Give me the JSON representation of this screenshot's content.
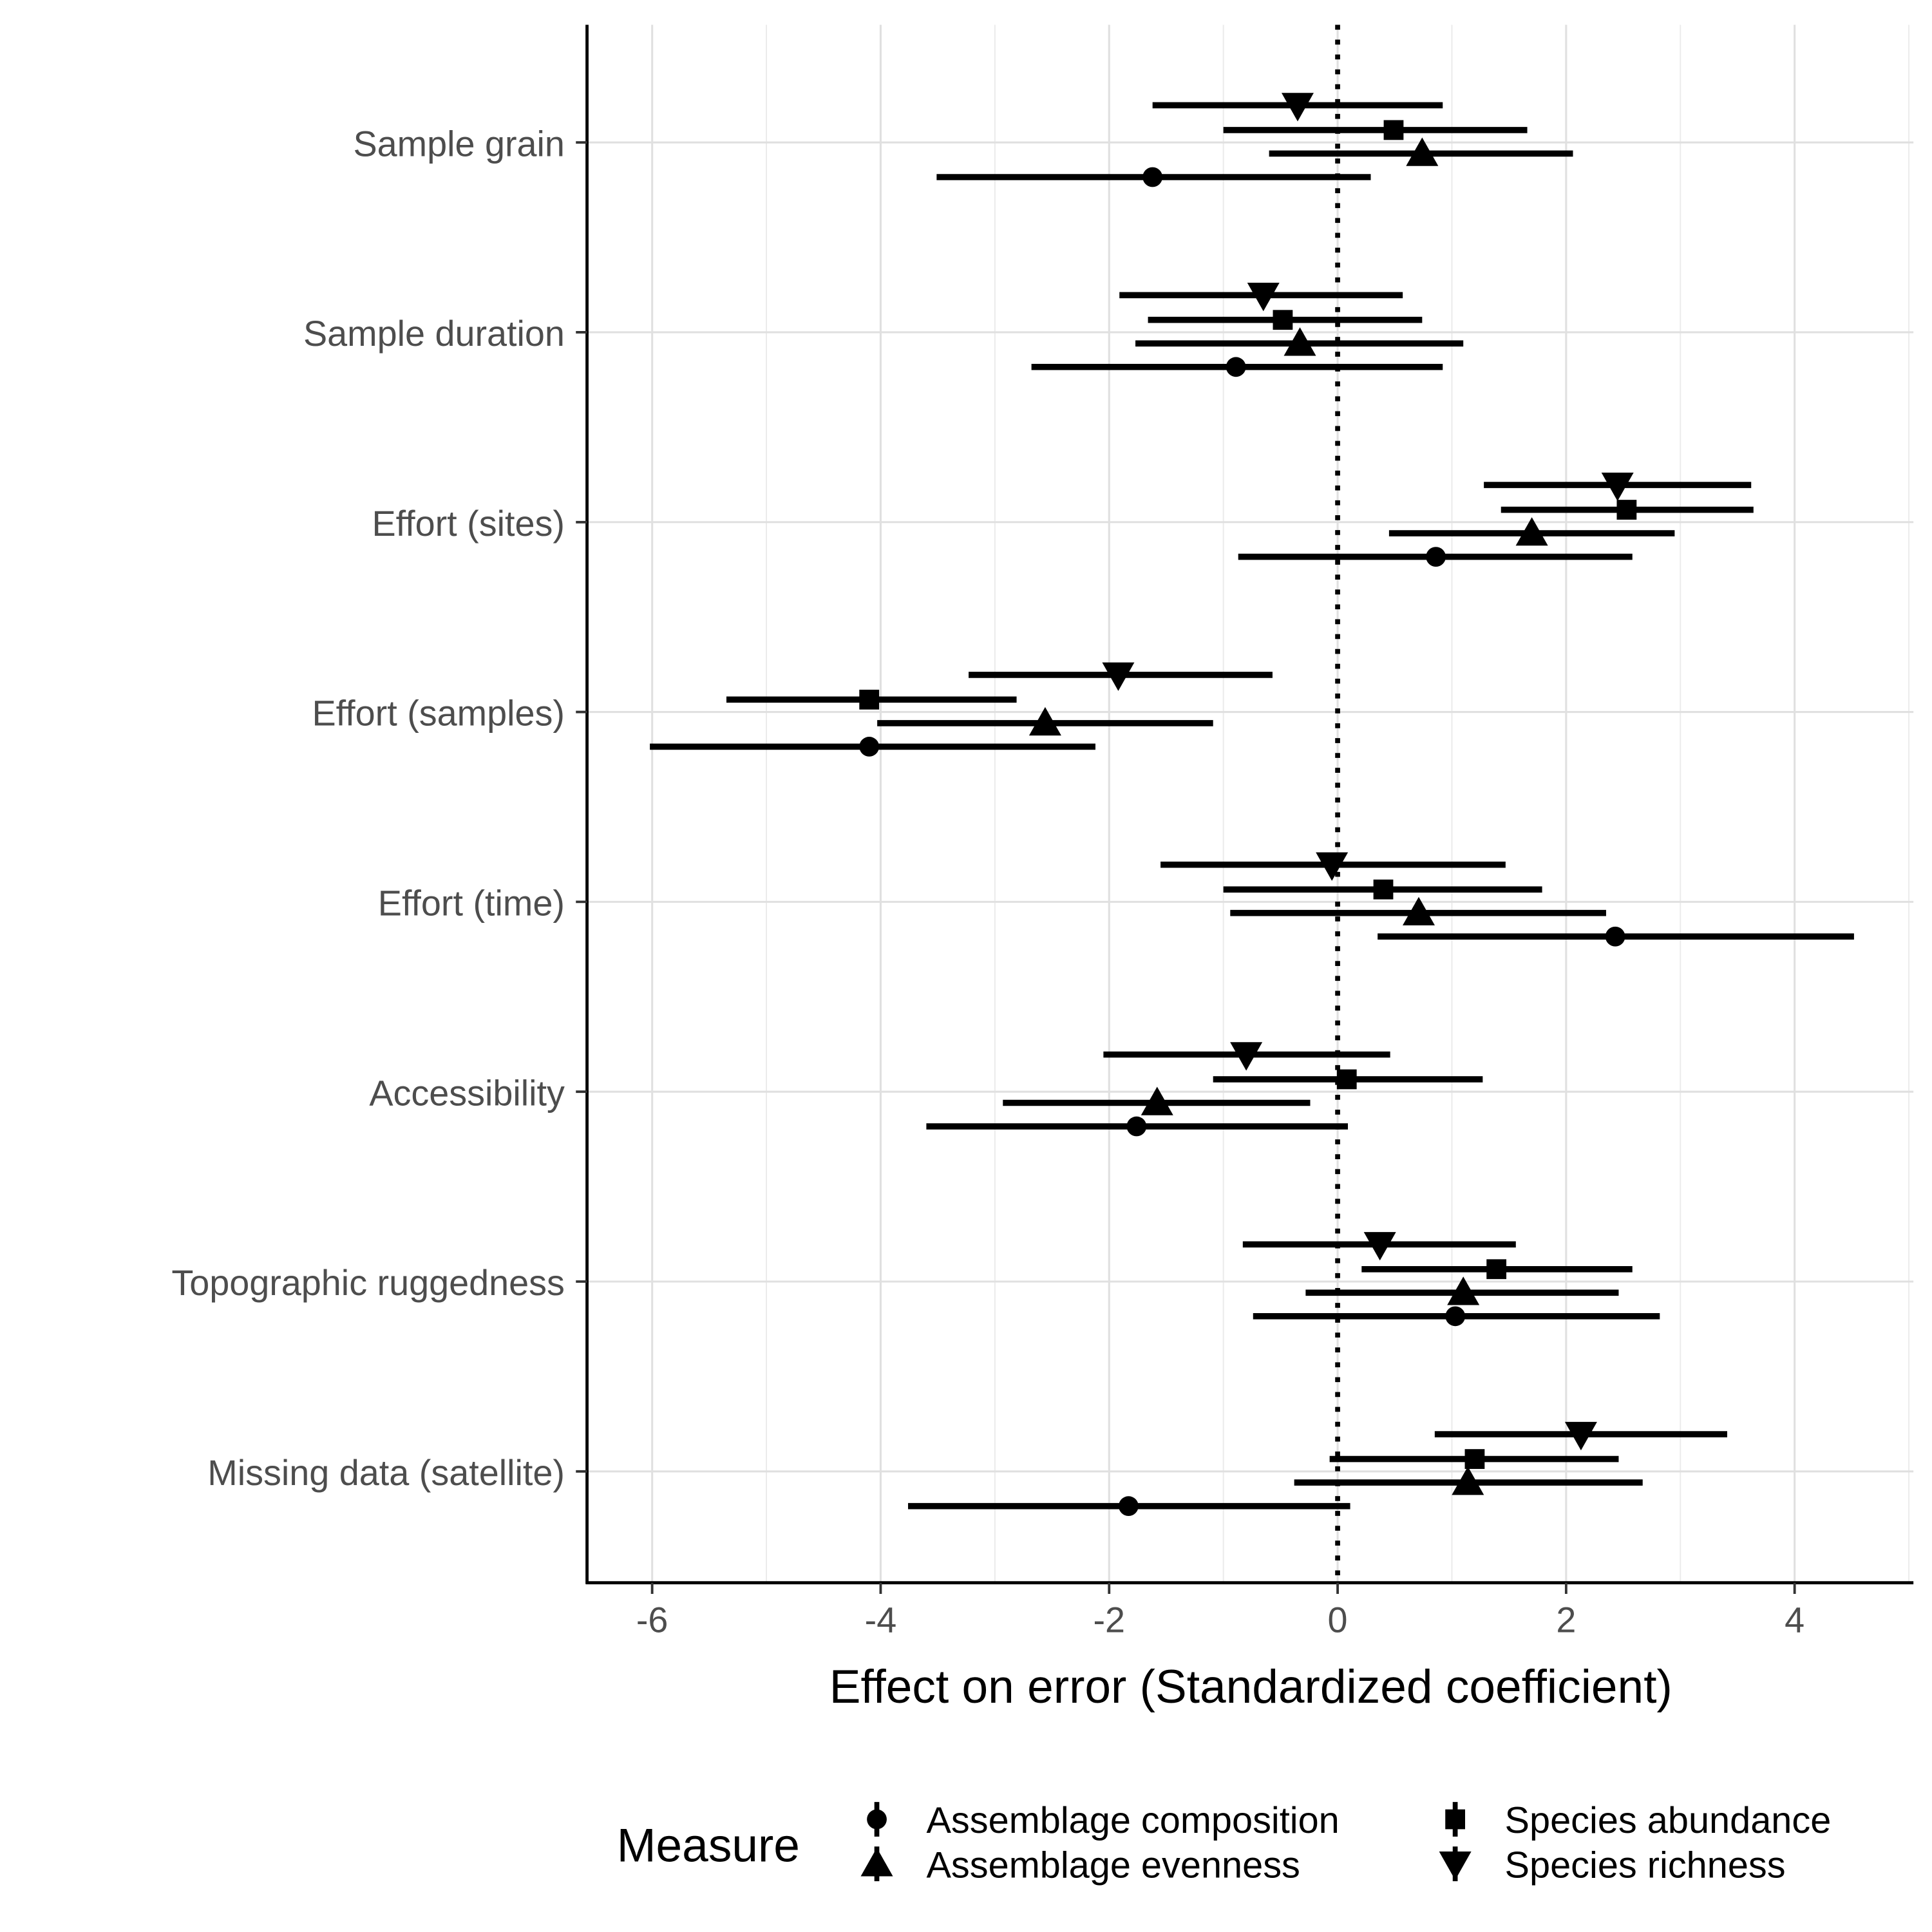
{
  "chart_data": {
    "type": "scatter",
    "subtype": "coefficient plot with horizontal confidence intervals",
    "xlabel": "Effect on error (Standardized coefficient)",
    "ylabel": "",
    "xlim": [
      -6.57,
      5.04
    ],
    "xticks": [
      -6,
      -4,
      -2,
      0,
      2,
      4
    ],
    "xtick_labels": [
      "-6",
      "-4",
      "-2",
      "0",
      "2",
      "4"
    ],
    "reference_line": {
      "x": 0,
      "style": "dotted"
    },
    "grid": true,
    "categories": [
      "Sample grain",
      "Sample duration",
      "Effort (sites)",
      "Effort (samples)",
      "Effort (time)",
      "Accessibility",
      "Topographic ruggedness",
      "Missing data (satellite)"
    ],
    "legend": {
      "title": "Measure",
      "position": "bottom"
    },
    "color": "#000000",
    "series": [
      {
        "name": "Species richness",
        "marker": "triangle-down",
        "values": [
          -0.35,
          -0.65,
          2.45,
          -1.92,
          -0.05,
          -0.8,
          0.37,
          2.13
        ],
        "lower": [
          -1.62,
          -1.91,
          1.28,
          -3.23,
          -1.55,
          -2.05,
          -0.83,
          0.85
        ],
        "upper": [
          0.92,
          0.57,
          3.62,
          -0.57,
          1.47,
          0.46,
          1.56,
          3.41
        ]
      },
      {
        "name": "Species abundance",
        "marker": "square",
        "values": [
          0.49,
          -0.48,
          2.53,
          -4.1,
          0.4,
          0.08,
          1.39,
          1.2
        ],
        "lower": [
          -1.0,
          -1.66,
          1.43,
          -5.35,
          -1.0,
          -1.09,
          0.21,
          -0.07
        ],
        "upper": [
          1.66,
          0.74,
          3.64,
          -2.81,
          1.79,
          1.27,
          2.58,
          2.46
        ]
      },
      {
        "name": "Assemblage evenness",
        "marker": "triangle-up",
        "values": [
          0.74,
          -0.33,
          1.7,
          -2.56,
          0.71,
          -1.58,
          1.1,
          1.14
        ],
        "lower": [
          -0.6,
          -1.77,
          0.45,
          -4.03,
          -0.94,
          -2.93,
          -0.28,
          -0.38
        ],
        "upper": [
          2.06,
          1.1,
          2.95,
          -1.09,
          2.35,
          -0.24,
          2.46,
          2.67
        ]
      },
      {
        "name": "Assemblage composition",
        "marker": "circle",
        "values": [
          -1.62,
          -0.89,
          0.86,
          -4.1,
          2.43,
          -1.76,
          1.03,
          -1.83
        ],
        "lower": [
          -3.51,
          -2.68,
          -0.87,
          -6.02,
          0.35,
          -3.6,
          -0.74,
          -3.76
        ],
        "upper": [
          0.29,
          0.92,
          2.58,
          -2.12,
          4.52,
          0.09,
          2.82,
          0.11
        ]
      }
    ],
    "legend_entries": [
      "Assemblage composition",
      "Assemblage evenness",
      "Species abundance",
      "Species richness"
    ]
  }
}
